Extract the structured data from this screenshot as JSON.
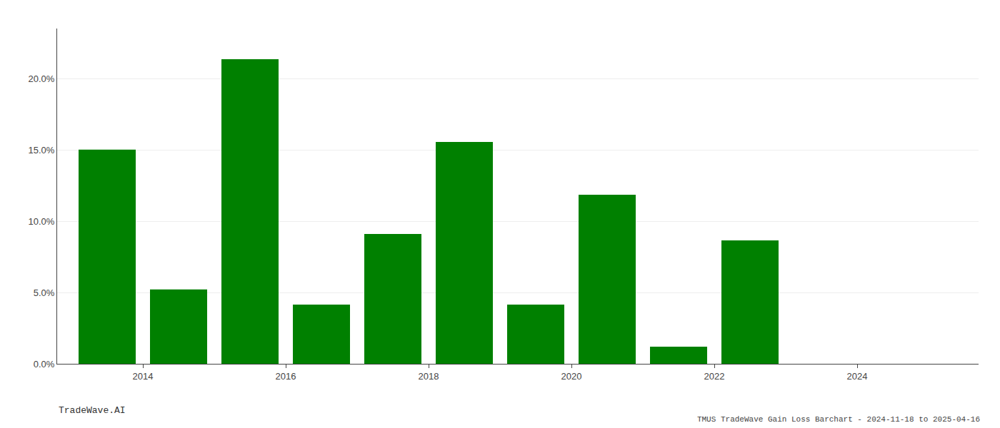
{
  "chart_data": {
    "type": "bar",
    "title": "TMUS TradeWave Gain Loss Barchart - 2024-11-18 to 2025-04-16",
    "annotations": [
      "TradeWave.AI"
    ],
    "x": [
      2013,
      2014,
      2015,
      2016,
      2017,
      2018,
      2019,
      2020,
      2021,
      2022,
      2023,
      2024
    ],
    "values": [
      0.1501,
      0.0521,
      0.2135,
      0.0415,
      0.091,
      0.1555,
      0.0415,
      0.1185,
      0.012,
      0.0865,
      0.0,
      0.0
    ],
    "color": "#008000",
    "xlim": [
      2012.3,
      2025.2
    ],
    "xticks": [
      {
        "value": 2013.5,
        "label": "2014"
      },
      {
        "value": 2015.5,
        "label": "2016"
      },
      {
        "value": 2017.5,
        "label": "2018"
      },
      {
        "value": 2019.5,
        "label": "2020"
      },
      {
        "value": 2021.5,
        "label": "2022"
      },
      {
        "value": 2023.5,
        "label": "2024"
      }
    ],
    "ylim": [
      0,
      0.235
    ],
    "yticks": [
      {
        "value": 0.0,
        "label": "0.0%"
      },
      {
        "value": 0.05,
        "label": "5.0%"
      },
      {
        "value": 0.1,
        "label": "10.0%"
      },
      {
        "value": 0.15,
        "label": "15.0%"
      },
      {
        "value": 0.2,
        "label": "20.0%"
      }
    ],
    "grid": true
  }
}
